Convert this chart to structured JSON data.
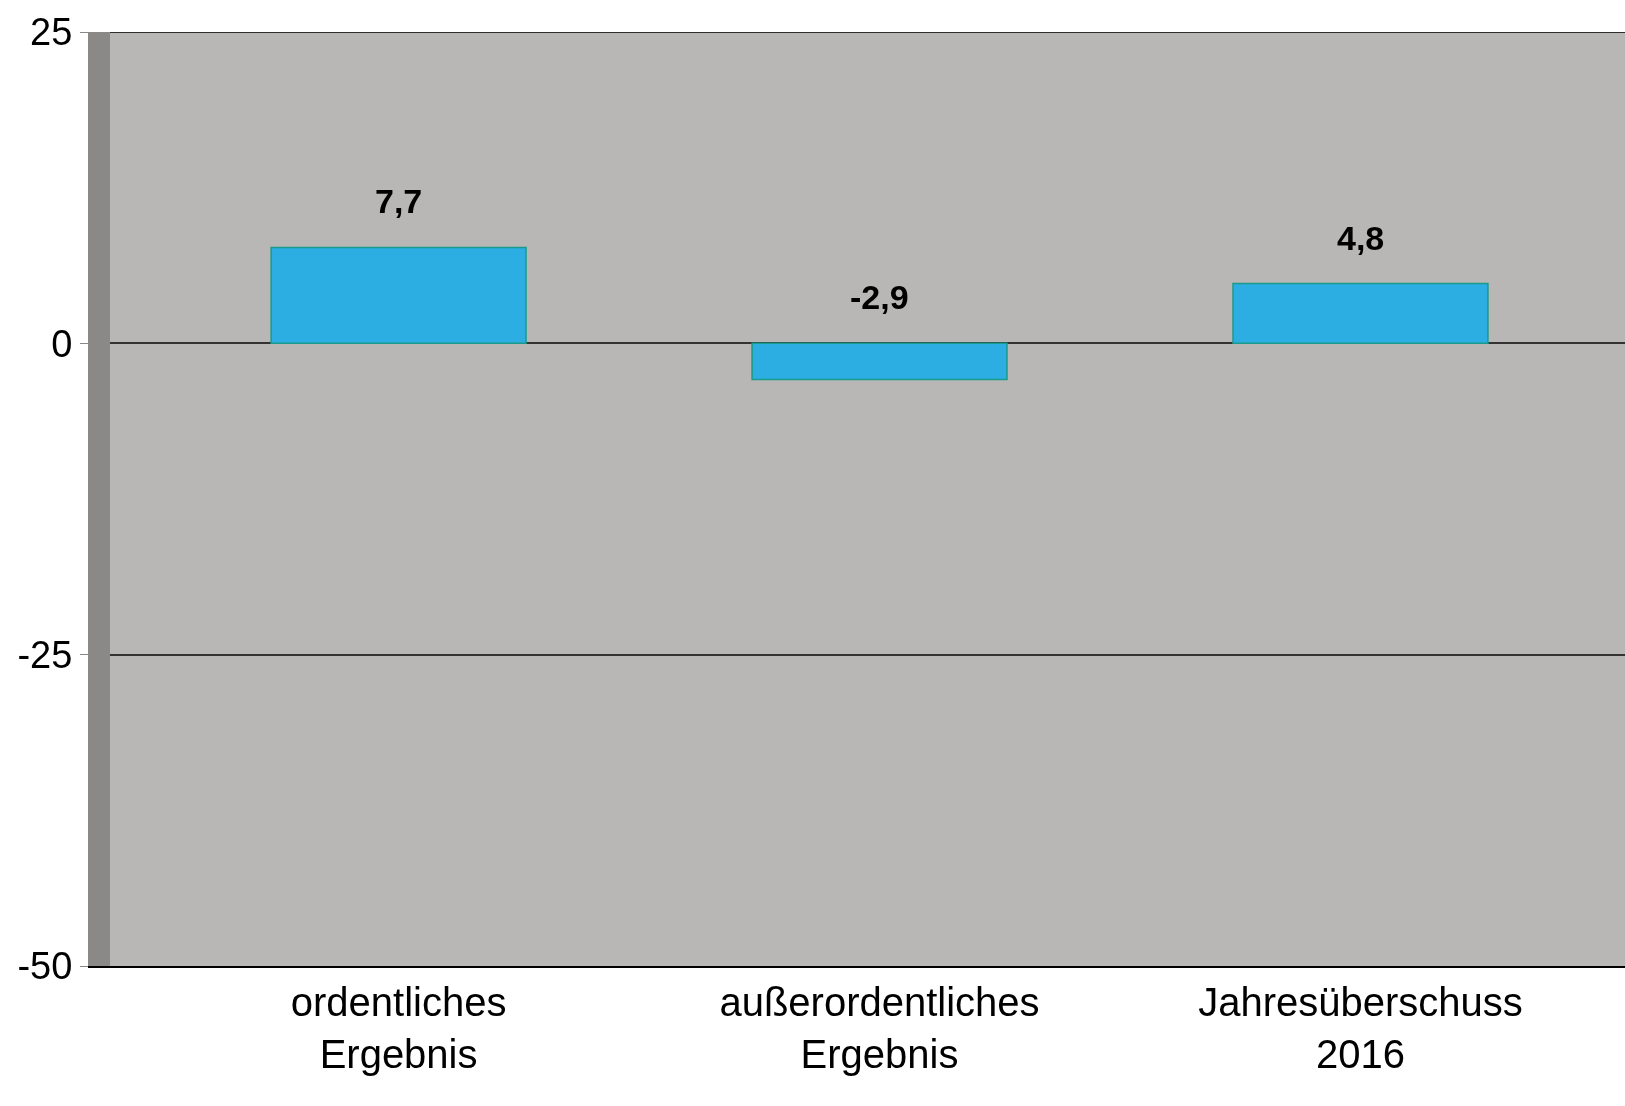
{
  "chart_data": {
    "type": "bar",
    "categories": [
      "ordentliches Ergebnis",
      "außerordentliches Ergebnis",
      "Jahresüberschuss 2016"
    ],
    "values": [
      7.7,
      -2.9,
      4.8
    ],
    "value_labels": [
      "7,7",
      "-2,9",
      "4,8"
    ],
    "color": "#2daee3",
    "ylim": [
      -50,
      25
    ],
    "yticks": [
      25,
      0,
      -25,
      -50
    ],
    "grid": "y"
  }
}
